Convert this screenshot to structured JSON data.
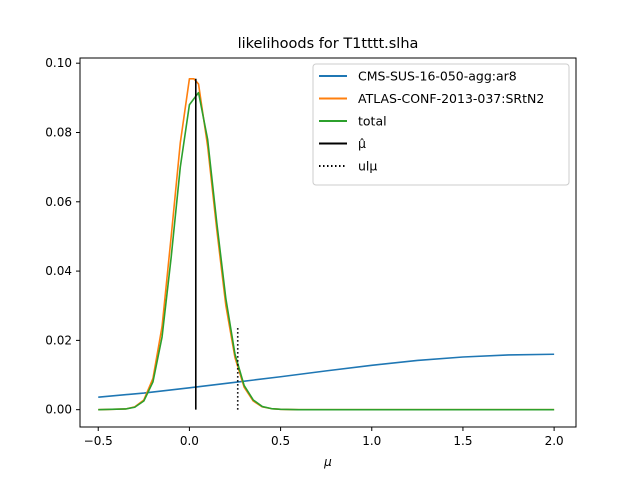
{
  "chart_data": {
    "type": "line",
    "title": "likelihoods for T1tttt.slha",
    "xlabel": "μ",
    "ylabel": "",
    "xlim": [
      -0.6,
      2.12
    ],
    "ylim": [
      -0.005,
      0.1015
    ],
    "xticks": [
      -0.5,
      0.0,
      0.5,
      1.0,
      1.5,
      2.0
    ],
    "xtick_labels": [
      "−0.5",
      "0.0",
      "0.5",
      "1.0",
      "1.5",
      "2.0"
    ],
    "yticks": [
      0.0,
      0.02,
      0.04,
      0.06,
      0.08,
      0.1
    ],
    "ytick_labels": [
      "0.00",
      "0.02",
      "0.04",
      "0.06",
      "0.08",
      "0.10"
    ],
    "grid": false,
    "legend_position": "top-right",
    "series": [
      {
        "name": "CMS-SUS-16-050-agg:ar8",
        "color": "#1f77b4",
        "x": [
          -0.5,
          -0.25,
          0.0,
          0.25,
          0.5,
          0.75,
          1.0,
          1.25,
          1.5,
          1.75,
          2.0
        ],
        "y": [
          0.0036,
          0.0048,
          0.0063,
          0.0079,
          0.0095,
          0.0112,
          0.0128,
          0.0142,
          0.0152,
          0.0158,
          0.016
        ]
      },
      {
        "name": "ATLAS-CONF-2013-037:SRtN2",
        "color": "#ff7f0e",
        "x": [
          -0.5,
          -0.35,
          -0.3,
          -0.25,
          -0.2,
          -0.15,
          -0.1,
          -0.05,
          0.0,
          0.025,
          0.05,
          0.1,
          0.15,
          0.2,
          0.25,
          0.3,
          0.35,
          0.4,
          0.45,
          0.5,
          0.6,
          2.0
        ],
        "y": [
          0.0,
          0.0002,
          0.0008,
          0.0028,
          0.009,
          0.024,
          0.05,
          0.077,
          0.0955,
          0.0955,
          0.094,
          0.076,
          0.052,
          0.03,
          0.015,
          0.0065,
          0.0025,
          0.0008,
          0.0003,
          0.0001,
          0.0,
          0.0
        ]
      },
      {
        "name": "total",
        "color": "#2ca02c",
        "x": [
          -0.5,
          -0.35,
          -0.3,
          -0.25,
          -0.2,
          -0.15,
          -0.1,
          -0.05,
          0.0,
          0.05,
          0.1,
          0.15,
          0.2,
          0.25,
          0.3,
          0.35,
          0.4,
          0.45,
          0.5,
          0.6,
          2.0
        ],
        "y": [
          0.0,
          0.0002,
          0.0007,
          0.0025,
          0.008,
          0.021,
          0.044,
          0.07,
          0.088,
          0.0915,
          0.078,
          0.054,
          0.032,
          0.016,
          0.007,
          0.0028,
          0.0009,
          0.0003,
          0.0001,
          0.0,
          0.0
        ]
      }
    ],
    "vlines": [
      {
        "name": "μ̂",
        "x": 0.035,
        "y0": 0.0,
        "y1": 0.0955,
        "color": "#000000",
        "style": "solid"
      },
      {
        "name": "ulμ",
        "x": 0.265,
        "y0": 0.0,
        "y1": 0.024,
        "color": "#000000",
        "style": "dotted"
      }
    ],
    "legend": [
      {
        "label": "CMS-SUS-16-050-agg:ar8",
        "color": "#1f77b4",
        "style": "solid"
      },
      {
        "label": "ATLAS-CONF-2013-037:SRtN2",
        "color": "#ff7f0e",
        "style": "solid"
      },
      {
        "label": "total",
        "color": "#2ca02c",
        "style": "solid"
      },
      {
        "label": "μ̂",
        "color": "#000000",
        "style": "solid"
      },
      {
        "label": "ulμ",
        "color": "#000000",
        "style": "dotted"
      }
    ]
  }
}
